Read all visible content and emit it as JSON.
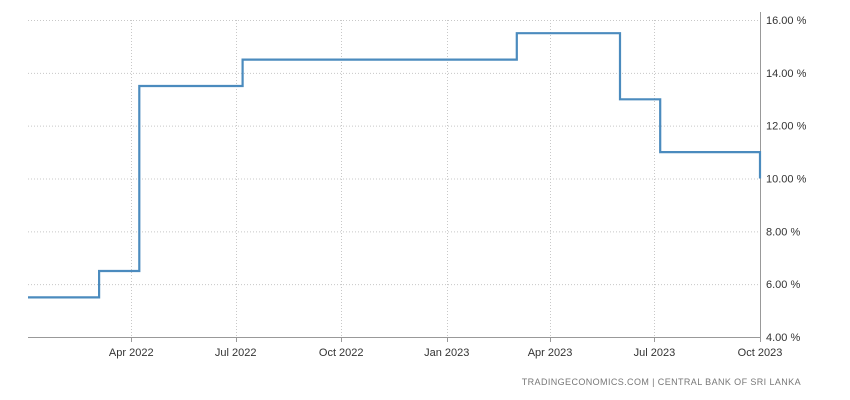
{
  "chart_data": {
    "type": "line",
    "step": true,
    "x_type": "date",
    "x": [
      "2022-01-01",
      "2022-03-04",
      "2022-03-04",
      "2022-04-08",
      "2022-04-08",
      "2022-07-07",
      "2022-07-07",
      "2023-03-03",
      "2023-03-03",
      "2023-06-01",
      "2023-06-01",
      "2023-07-06",
      "2023-07-06",
      "2023-10-01",
      "2023-10-01"
    ],
    "values": [
      5.5,
      5.5,
      6.5,
      6.5,
      13.5,
      13.5,
      14.5,
      14.5,
      15.5,
      15.5,
      13.0,
      13.0,
      11.0,
      11.0,
      10.0
    ],
    "ylim": [
      4,
      16
    ],
    "yticks": [
      "16.00 %",
      "14.00 %",
      "12.00 %",
      "10.00 %",
      "8.00 %",
      "6.00 %",
      "4.00 %"
    ],
    "xticks": [
      "Apr 2022",
      "Jul 2022",
      "Oct 2022",
      "Jan 2023",
      "Apr 2023",
      "Jul 2023",
      "Oct 2023"
    ],
    "y_axis_position": "right",
    "grid": true,
    "line_color": "#4b8bbe",
    "grid_color": "#c8c8c8"
  },
  "source_text": "TRADINGECONOMICS.COM | CENTRAL BANK OF SRI LANKA"
}
